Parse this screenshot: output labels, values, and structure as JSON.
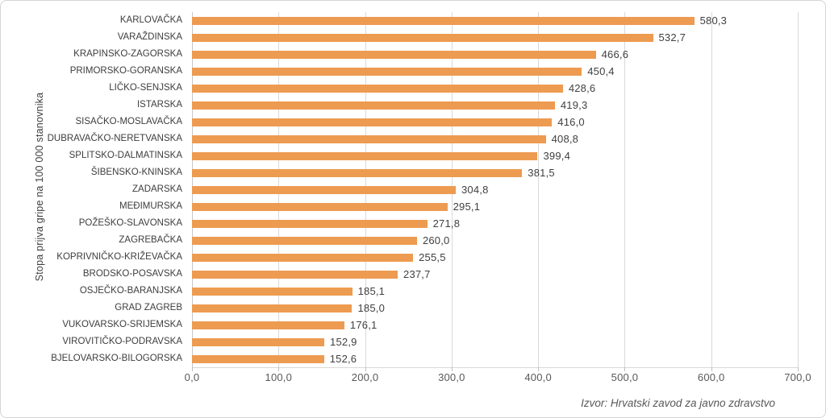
{
  "chart_data": {
    "type": "bar",
    "orientation": "horizontal",
    "title": "",
    "ylabel": "Stopa prijva gripe na 100 000 stanovnika",
    "xlabel": "",
    "xlim": [
      0,
      700
    ],
    "x_ticks": [
      0,
      100,
      200,
      300,
      400,
      500,
      600,
      700
    ],
    "x_tick_labels": [
      "0,0",
      "100,0",
      "200,0",
      "300,0",
      "400,0",
      "500,0",
      "600,0",
      "700,0"
    ],
    "grid": "vertical-only",
    "legend": "none",
    "categories": [
      "KARLOVAČKA",
      "VARAŽDINSKA",
      "KRAPINSKO-ZAGORSKA",
      "PRIMORSKO-GORANSKA",
      "LIČKO-SENJSKA",
      "ISTARSKA",
      "SISAČKO-MOSLAVAČKA",
      "DUBRAVAČKO-NERETVANSKA",
      "SPLITSKO-DALMATINSKA",
      "ŠIBENSKO-KNINSKA",
      "ZADARSKA",
      "MEĐIMURSKA",
      "POŽEŠKO-SLAVONSKA",
      "ZAGREBAČKA",
      "KOPRIVNIČKO-KRIŽEVAČKA",
      "BRODSKO-POSAVSKA",
      "OSJEČKO-BARANJSKA",
      "GRAD ZAGREB",
      "VUKOVARSKO-SRIJEMSKA",
      "VIROVITIČKO-PODRAVSKA",
      "BJELOVARSKO-BILOGORSKA"
    ],
    "values": [
      580.3,
      532.7,
      466.6,
      450.4,
      428.6,
      419.3,
      416.0,
      408.8,
      399.4,
      381.5,
      304.8,
      295.1,
      271.8,
      260.0,
      255.5,
      237.7,
      185.1,
      185.0,
      176.1,
      152.9,
      152.6
    ],
    "value_labels": [
      "580,3",
      "532,7",
      "466,6",
      "450,4",
      "428,6",
      "419,3",
      "416,0",
      "408,8",
      "399,4",
      "381,5",
      "304,8",
      "295,1",
      "271,8",
      "260,0",
      "255,5",
      "237,7",
      "185,1",
      "185,0",
      "176,1",
      "152,9",
      "152,6"
    ],
    "source": "Izvor: Hrvatski zavod za javno zdravstvo",
    "bar_color": "#ED9B51",
    "gridline_color": "#D9D9D9",
    "label_color": "#404040",
    "tick_color": "#595959"
  }
}
